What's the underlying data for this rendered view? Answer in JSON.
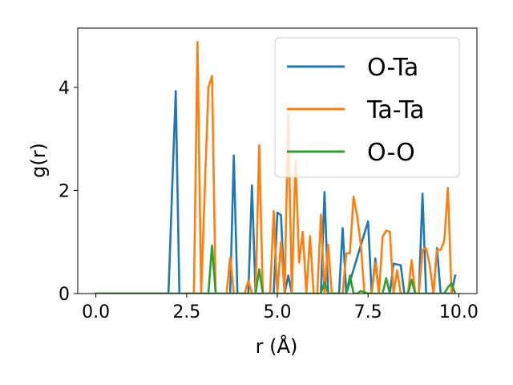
{
  "chart_data": {
    "type": "line",
    "xlabel": "r (Å)",
    "ylabel": "g(r)",
    "xlim": [
      -0.5,
      10.5
    ],
    "ylim": [
      0,
      5.15
    ],
    "xticks": [
      0.0,
      2.5,
      5.0,
      7.5,
      10.0
    ],
    "xtick_labels": [
      "0.0",
      "2.5",
      "5.0",
      "7.5",
      "10.0"
    ],
    "yticks": [
      0,
      2,
      4
    ],
    "ytick_labels": [
      "0",
      "2",
      "4"
    ],
    "legend_position": "top-right",
    "grid": false,
    "series": [
      {
        "name": "O-Ta",
        "color": "#1f77b4",
        "x": [
          0.0,
          2.0,
          2.1,
          2.2,
          2.3,
          3.7,
          3.8,
          3.9,
          4.2,
          4.3,
          4.4,
          4.9,
          5.0,
          5.1,
          5.2,
          5.3,
          5.4,
          5.5,
          6.2,
          6.3,
          6.4,
          6.7,
          6.8,
          6.9,
          7.5,
          7.6,
          7.7,
          7.8,
          8.1,
          8.2,
          8.4,
          8.5,
          8.6,
          8.9,
          9.0,
          9.1,
          9.3,
          9.4,
          9.5,
          9.8,
          9.9
        ],
        "y": [
          0.0,
          0.0,
          2.0,
          3.93,
          0.0,
          0.0,
          2.68,
          0.0,
          0.0,
          2.1,
          0.0,
          0.0,
          1.57,
          1.52,
          0.0,
          0.35,
          0.0,
          0.0,
          0.0,
          1.97,
          0.0,
          0.0,
          1.27,
          0.0,
          1.4,
          0.0,
          0.68,
          0.0,
          0.0,
          0.58,
          0.55,
          0.0,
          0.0,
          0.0,
          1.94,
          0.0,
          0.0,
          0.88,
          0.0,
          0.0,
          0.35
        ]
      },
      {
        "name": "Ta-Ta",
        "color": "#ff7f0e",
        "x": [
          0.0,
          2.7,
          2.8,
          2.9,
          3.1,
          3.2,
          3.3,
          3.6,
          3.7,
          3.8,
          4.1,
          4.2,
          4.3,
          4.4,
          4.5,
          4.6,
          4.8,
          4.9,
          5.0,
          5.1,
          5.2,
          5.3,
          5.4,
          5.5,
          5.6,
          5.7,
          5.8,
          5.9,
          6.0,
          6.1,
          6.2,
          6.3,
          6.4,
          6.5,
          6.6,
          6.8,
          6.9,
          7.0,
          7.1,
          7.2,
          7.3,
          7.4,
          7.5,
          7.6,
          7.7,
          7.8,
          7.9,
          8.0,
          8.1,
          8.2,
          8.3,
          8.4,
          8.5,
          8.6,
          8.7,
          8.8,
          8.9,
          9.0,
          9.1,
          9.2,
          9.3,
          9.4,
          9.5,
          9.6,
          9.7,
          9.8,
          9.9
        ],
        "y": [
          0.0,
          0.0,
          4.88,
          0.0,
          4.0,
          4.22,
          0.0,
          0.0,
          0.7,
          0.0,
          0.0,
          0.25,
          0.0,
          0.0,
          2.88,
          0.0,
          0.0,
          1.6,
          0.0,
          1.0,
          0.0,
          3.48,
          0.0,
          2.58,
          0.6,
          1.2,
          0.0,
          1.12,
          0.0,
          0.0,
          1.53,
          0.0,
          0.95,
          0.0,
          0.0,
          0.0,
          0.78,
          0.78,
          1.88,
          1.5,
          0.95,
          0.0,
          0.0,
          0.0,
          0.6,
          0.0,
          1.1,
          1.22,
          1.2,
          0.0,
          0.45,
          0.0,
          0.0,
          0.0,
          0.65,
          0.0,
          0.0,
          0.85,
          0.88,
          0.55,
          0.0,
          0.85,
          0.85,
          1.02,
          2.05,
          0.0,
          0.0
        ]
      },
      {
        "name": "O-O",
        "color": "#2ca02c",
        "x": [
          0.0,
          3.1,
          3.2,
          3.3,
          4.4,
          4.5,
          4.6,
          6.2,
          6.3,
          6.4,
          6.9,
          7.0,
          7.1,
          7.2,
          7.3,
          7.5,
          7.6,
          7.9,
          8.0,
          8.1,
          8.6,
          8.7,
          8.8,
          9.6,
          9.7,
          9.8,
          9.9
        ],
        "y": [
          0.0,
          0.0,
          0.93,
          0.0,
          0.0,
          0.47,
          0.0,
          0.0,
          0.22,
          0.0,
          0.0,
          0.35,
          0.0,
          0.0,
          0.05,
          0.0,
          0.0,
          0.0,
          0.3,
          0.0,
          0.0,
          0.27,
          0.0,
          0.0,
          0.12,
          0.2,
          0.0
        ]
      }
    ]
  }
}
